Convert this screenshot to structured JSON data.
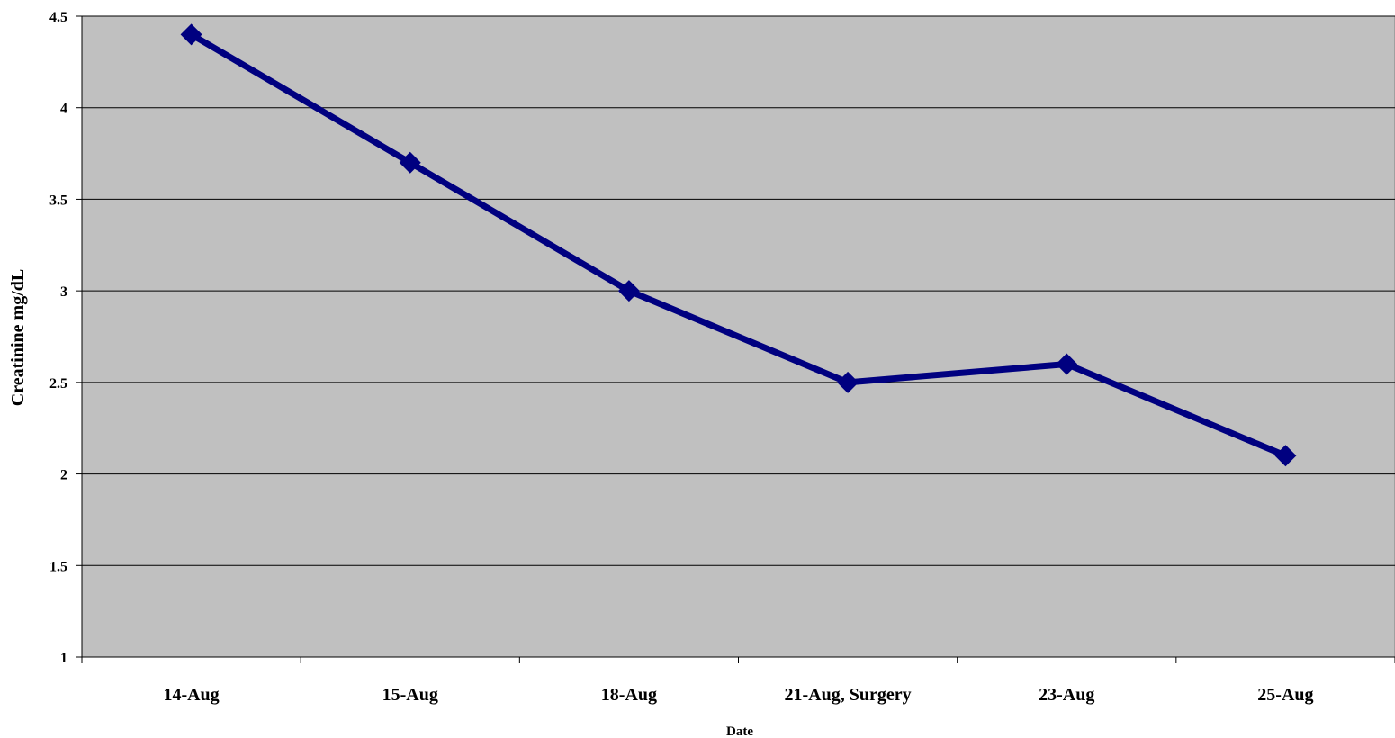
{
  "chart_data": {
    "type": "line",
    "xlabel": "Date",
    "ylabel": "Creatinine mg/dL",
    "categories": [
      "14-Aug",
      "15-Aug",
      "18-Aug",
      "21-Aug, Surgery",
      "23-Aug",
      "25-Aug"
    ],
    "series": [
      {
        "values": [
          4.4,
          3.7,
          3.0,
          2.5,
          2.6,
          2.1
        ]
      }
    ],
    "ylim": [
      1,
      4.5
    ],
    "yticks": [
      "1",
      "1.5",
      "2",
      "2.5",
      "3",
      "3.5",
      "4",
      "4.5"
    ],
    "grid": true,
    "legend": "none",
    "colors": {
      "series": "#000080",
      "plot_background": "#c0c0c0",
      "gridline": "#000000"
    }
  }
}
